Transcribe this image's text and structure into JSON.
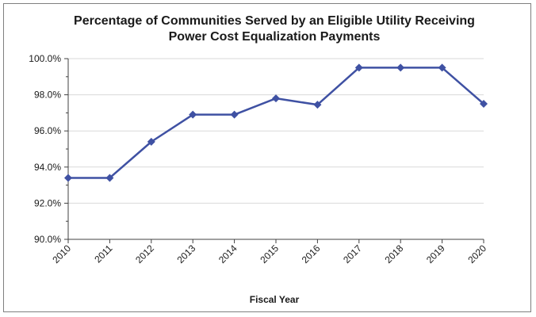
{
  "chart_data": {
    "type": "line",
    "title_lines": [
      "Percentage of Communities Served by an Eligible Utility Receiving",
      "Power Cost Equalization Payments"
    ],
    "xlabel": "Fiscal Year",
    "ylabel": "",
    "categories": [
      "2010",
      "2011",
      "2012",
      "2013",
      "2014",
      "2015",
      "2016",
      "2017",
      "2018",
      "2019",
      "2020"
    ],
    "series": [
      {
        "values": [
          93.4,
          93.4,
          95.4,
          96.9,
          96.9,
          97.8,
          97.45,
          99.5,
          99.5,
          99.5,
          97.5
        ]
      }
    ],
    "ylim": [
      90,
      100
    ],
    "yticks": [
      90,
      92,
      94,
      96,
      98,
      100
    ],
    "ytick_labels": [
      "90.0%",
      "92.0%",
      "94.0%",
      "96.0%",
      "98.0%",
      "100.0%"
    ],
    "grid": true,
    "colors": {
      "line": "#3f51a3",
      "grid": "#d9d9d9",
      "axis": "#404040"
    }
  }
}
